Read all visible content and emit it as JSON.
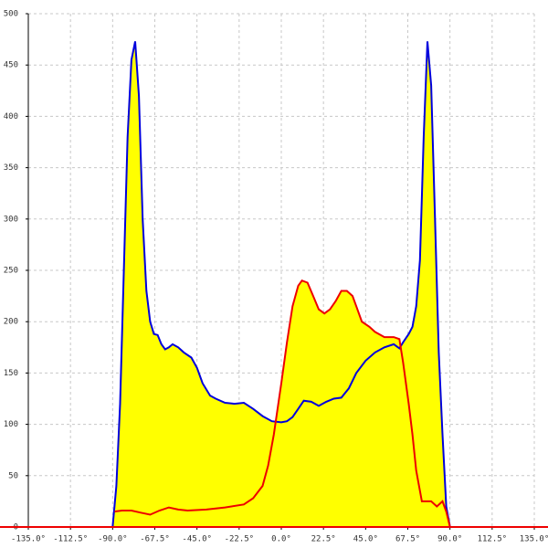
{
  "chart_data": {
    "type": "area-line",
    "xlim": [
      -135,
      135
    ],
    "xticks": [
      {
        "value": -135,
        "label": "-135.0°"
      },
      {
        "value": -112.5,
        "label": "-112.5°"
      },
      {
        "value": -90,
        "label": "-90.0°"
      },
      {
        "value": -67.5,
        "label": "-67.5°"
      },
      {
        "value": -45,
        "label": "-45.0°"
      },
      {
        "value": -22.5,
        "label": "-22.5°"
      },
      {
        "value": 0,
        "label": "0.0°"
      },
      {
        "value": 22.5,
        "label": "22.5°"
      },
      {
        "value": 45,
        "label": "45.0°"
      },
      {
        "value": 67.5,
        "label": "67.5°"
      },
      {
        "value": 90,
        "label": "90.0°"
      },
      {
        "value": 112.5,
        "label": "112.5°"
      },
      {
        "value": 135,
        "label": "135.0°"
      }
    ],
    "ylim": [
      0,
      500
    ],
    "yticks": [
      0,
      50,
      100,
      150,
      200,
      250,
      300,
      350,
      400,
      450,
      500
    ],
    "grid": true,
    "fill_color": "#ffff00",
    "series": [
      {
        "color": "#0000dd",
        "x": [
          -90,
          -88,
          -86,
          -84,
          -82,
          -80,
          -78,
          -76,
          -74,
          -72,
          -70,
          -68,
          -66,
          -64,
          -62,
          -60,
          -58,
          -55,
          -52,
          -48,
          -45,
          -42,
          -38,
          -35,
          -30,
          -25,
          -20,
          -15,
          -10,
          -5,
          0,
          3,
          6,
          9,
          12,
          16,
          20,
          24,
          28,
          32,
          36,
          40,
          45,
          50,
          55,
          60,
          63,
          65,
          68,
          70,
          72,
          74,
          76,
          78,
          80,
          82,
          84,
          86,
          88,
          90
        ],
        "values": [
          0,
          40,
          120,
          250,
          380,
          455,
          473,
          420,
          300,
          230,
          200,
          188,
          187,
          178,
          173,
          175,
          178,
          175,
          170,
          165,
          155,
          140,
          128,
          125,
          121,
          120,
          121,
          115,
          108,
          103,
          102,
          103,
          107,
          115,
          123,
          122,
          118,
          122,
          125,
          126,
          135,
          150,
          162,
          170,
          175,
          178,
          174,
          180,
          188,
          195,
          215,
          260,
          380,
          473,
          430,
          300,
          170,
          90,
          20,
          0
        ]
      },
      {
        "color": "#ee0000",
        "x": [
          -89,
          -85,
          -80,
          -75,
          -70,
          -65,
          -60,
          -55,
          -50,
          -40,
          -30,
          -20,
          -15,
          -10,
          -7,
          -4,
          0,
          3,
          6,
          9,
          11,
          14,
          17,
          20,
          23,
          26,
          29,
          32,
          35,
          38,
          40,
          43,
          47,
          50,
          55,
          60,
          63,
          65,
          68,
          70,
          72,
          75,
          80,
          83,
          86,
          88,
          90
        ],
        "values": [
          15,
          16,
          16,
          14,
          12,
          16,
          19,
          17,
          16,
          17,
          19,
          22,
          28,
          40,
          60,
          90,
          140,
          180,
          215,
          235,
          240,
          238,
          225,
          212,
          208,
          212,
          220,
          230,
          230,
          225,
          215,
          200,
          195,
          190,
          185,
          185,
          183,
          160,
          120,
          90,
          55,
          25,
          25,
          20,
          25,
          15,
          0
        ]
      }
    ]
  }
}
